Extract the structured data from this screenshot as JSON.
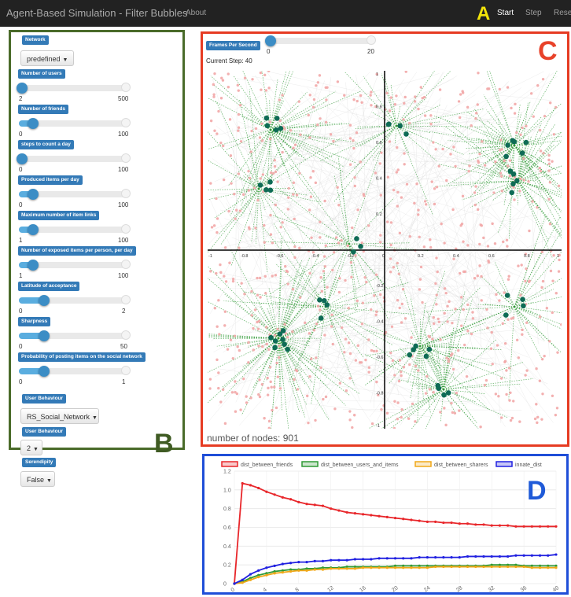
{
  "navbar": {
    "title": "Agent-Based Simulation - Filter Bubbles",
    "about": "About",
    "start": "Start",
    "step": "Step",
    "reset": "Reset",
    "marker": "A"
  },
  "sidebar": {
    "marker": "B",
    "network_label": "Network",
    "network_value": "predefined",
    "sliders": [
      {
        "label": "Number of users",
        "min": "2",
        "max": "500",
        "fraction": 0.0
      },
      {
        "label": "Number of friends",
        "min": "0",
        "max": "100",
        "fraction": 0.1
      },
      {
        "label": "steps to count a day",
        "min": "0",
        "max": "100",
        "fraction": 0.0
      },
      {
        "label": "Produced items per day",
        "min": "0",
        "max": "100",
        "fraction": 0.1
      },
      {
        "label": "Maximum number of item links",
        "min": "1",
        "max": "100",
        "fraction": 0.1
      },
      {
        "label": "Number of exposed items per person, per day",
        "min": "1",
        "max": "100",
        "fraction": 0.1
      },
      {
        "label": "Latitude of acceptance",
        "min": "0",
        "max": "2",
        "fraction": 0.2
      },
      {
        "label": "Sharpness",
        "min": "0",
        "max": "50",
        "fraction": 0.2
      },
      {
        "label": "Probability of posting items on the social network",
        "min": "0",
        "max": "1",
        "fraction": 0.2
      }
    ],
    "behaviour_label_1": "User Behaviour",
    "behaviour_value_1": "RS_Social_Network",
    "behaviour_label_2": "User Behaviour",
    "behaviour_value_2": "2",
    "serendipity_label": "Serendipity",
    "serendipity_value": "False"
  },
  "simulation": {
    "marker": "C",
    "fps_label": "Frames Per Second",
    "fps_min": "0",
    "fps_max": "20",
    "fps_fraction": 0.0,
    "current_step": "Current Step: 40",
    "node_count": "number of nodes: 901",
    "x_ticks": [
      "-1",
      "-0.8",
      "-0.6",
      "-0.4",
      "-0.2",
      "0",
      "0.2",
      "0.4",
      "0.6",
      "0.8",
      "1"
    ],
    "y_ticks": [
      "1",
      "0.8",
      "0.6",
      "0.4",
      "0.2",
      "0",
      "-0.2",
      "-0.4",
      "-0.6",
      "-0.8",
      "-1"
    ],
    "colors": {
      "user": "#0e6b55",
      "item": "#f2a7a7",
      "friend_edge": "#2f9a35",
      "item_edge": "#cfcfcf"
    }
  },
  "chart_data": {
    "type": "line",
    "marker": "D",
    "x": [
      0,
      1,
      2,
      3,
      4,
      5,
      6,
      7,
      8,
      9,
      10,
      11,
      12,
      13,
      14,
      15,
      16,
      17,
      18,
      19,
      20,
      21,
      22,
      23,
      24,
      25,
      26,
      27,
      28,
      29,
      30,
      31,
      32,
      33,
      34,
      35,
      36,
      37,
      38,
      39,
      40
    ],
    "x_ticks": [
      "0",
      "4",
      "8",
      "12",
      "16",
      "20",
      "24",
      "28",
      "32",
      "36",
      "40"
    ],
    "y_ticks": [
      "0",
      "0.2",
      "0.4",
      "0.6",
      "0.8",
      "1.0",
      "1.2"
    ],
    "ylim": [
      0,
      1.2
    ],
    "xlim": [
      0,
      40
    ],
    "series": [
      {
        "name": "dist_between_friends",
        "color": "#e8262a",
        "values": [
          0.0,
          1.07,
          1.05,
          1.02,
          0.98,
          0.95,
          0.92,
          0.9,
          0.87,
          0.85,
          0.84,
          0.83,
          0.8,
          0.78,
          0.76,
          0.75,
          0.74,
          0.73,
          0.72,
          0.71,
          0.7,
          0.69,
          0.68,
          0.67,
          0.66,
          0.66,
          0.65,
          0.65,
          0.64,
          0.64,
          0.63,
          0.63,
          0.62,
          0.62,
          0.62,
          0.61,
          0.61,
          0.61,
          0.61,
          0.61,
          0.61
        ]
      },
      {
        "name": "dist_between_users_and_items",
        "color": "#2f9a35",
        "values": [
          0.0,
          0.02,
          0.06,
          0.09,
          0.11,
          0.13,
          0.14,
          0.15,
          0.15,
          0.16,
          0.16,
          0.17,
          0.17,
          0.17,
          0.18,
          0.18,
          0.18,
          0.18,
          0.18,
          0.18,
          0.19,
          0.19,
          0.19,
          0.19,
          0.19,
          0.19,
          0.19,
          0.19,
          0.19,
          0.19,
          0.19,
          0.19,
          0.2,
          0.2,
          0.2,
          0.2,
          0.19,
          0.19,
          0.19,
          0.19,
          0.19
        ]
      },
      {
        "name": "dist_between_sharers",
        "color": "#f0a818",
        "values": [
          0.0,
          0.01,
          0.04,
          0.07,
          0.09,
          0.11,
          0.12,
          0.13,
          0.14,
          0.14,
          0.15,
          0.15,
          0.16,
          0.16,
          0.16,
          0.16,
          0.17,
          0.17,
          0.17,
          0.17,
          0.17,
          0.17,
          0.17,
          0.17,
          0.17,
          0.18,
          0.18,
          0.18,
          0.18,
          0.18,
          0.18,
          0.18,
          0.18,
          0.18,
          0.18,
          0.18,
          0.18,
          0.17,
          0.17,
          0.17,
          0.17
        ]
      },
      {
        "name": "innate_dist",
        "color": "#2020e0",
        "values": [
          0.0,
          0.04,
          0.1,
          0.14,
          0.17,
          0.19,
          0.21,
          0.22,
          0.23,
          0.23,
          0.24,
          0.24,
          0.25,
          0.25,
          0.25,
          0.26,
          0.26,
          0.26,
          0.27,
          0.27,
          0.27,
          0.27,
          0.27,
          0.28,
          0.28,
          0.28,
          0.28,
          0.28,
          0.28,
          0.29,
          0.29,
          0.29,
          0.29,
          0.29,
          0.29,
          0.3,
          0.3,
          0.3,
          0.3,
          0.3,
          0.31
        ]
      }
    ]
  }
}
